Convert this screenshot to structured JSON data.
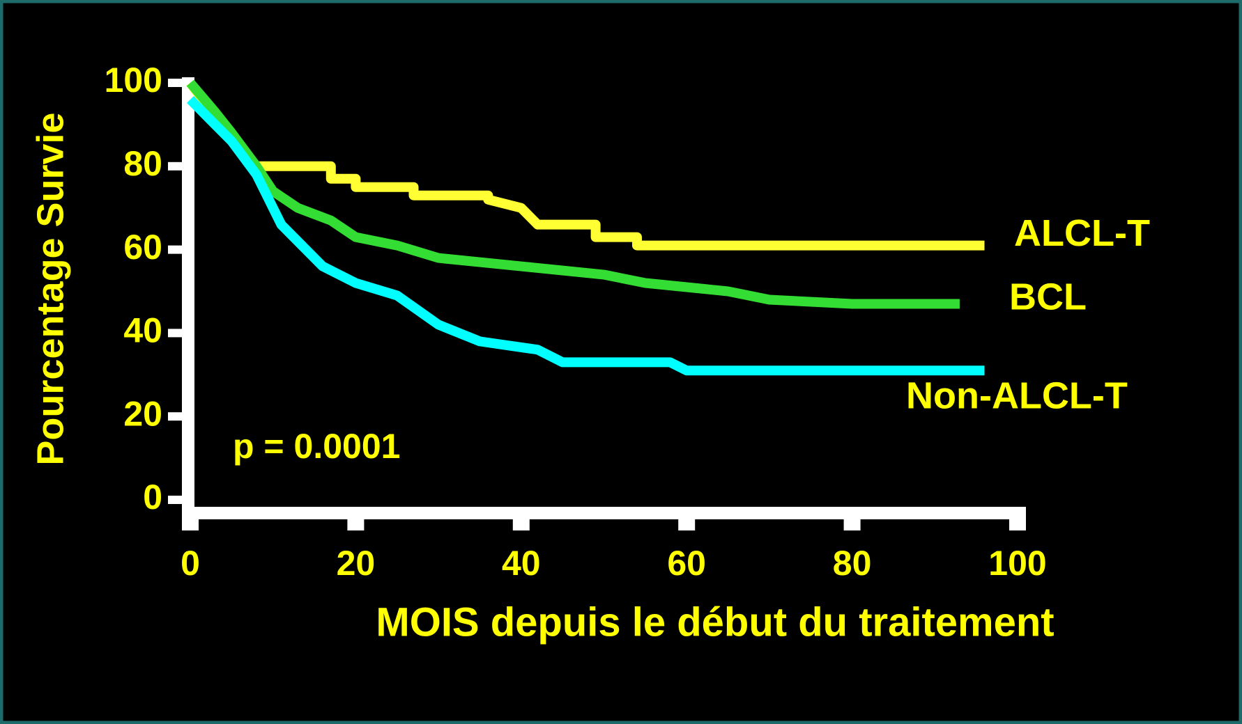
{
  "chart_data": {
    "type": "line",
    "annotation": "p = 0.0001",
    "xlabel": "MOIS depuis le début du traitement",
    "ylabel": "Pourcentage  Survie",
    "xlim": [
      0,
      100
    ],
    "ylim": [
      0,
      100
    ],
    "xticks": [
      0,
      20,
      40,
      60,
      80,
      100
    ],
    "yticks": [
      0,
      20,
      40,
      60,
      80,
      100
    ],
    "series": [
      {
        "name": "ALCL-T",
        "color": "#ffff33",
        "x": [
          0,
          3,
          6,
          8,
          17,
          17,
          20,
          20,
          27,
          27,
          36,
          36,
          40,
          42,
          49,
          49,
          54,
          54,
          96
        ],
        "values": [
          100,
          92,
          85,
          80,
          80,
          77,
          77,
          75,
          75,
          73,
          73,
          72,
          70,
          66,
          66,
          63,
          63,
          61,
          61
        ]
      },
      {
        "name": "BCL",
        "color": "#33dd33",
        "x": [
          0,
          3,
          5,
          8,
          10,
          13,
          17,
          20,
          25,
          30,
          40,
          50,
          55,
          65,
          70,
          80,
          93
        ],
        "values": [
          100,
          93,
          88,
          80,
          74,
          70,
          67,
          63,
          61,
          58,
          56,
          54,
          52,
          50,
          48,
          47,
          47
        ]
      },
      {
        "name": "Non-ALCL-T",
        "color": "#00ffff",
        "x": [
          0,
          3,
          5,
          8,
          11,
          16,
          20,
          25,
          30,
          35,
          42,
          45,
          58,
          60,
          96
        ],
        "values": [
          96,
          90,
          86,
          78,
          66,
          56,
          52,
          49,
          42,
          38,
          36,
          33,
          33,
          31,
          31
        ]
      }
    ]
  }
}
